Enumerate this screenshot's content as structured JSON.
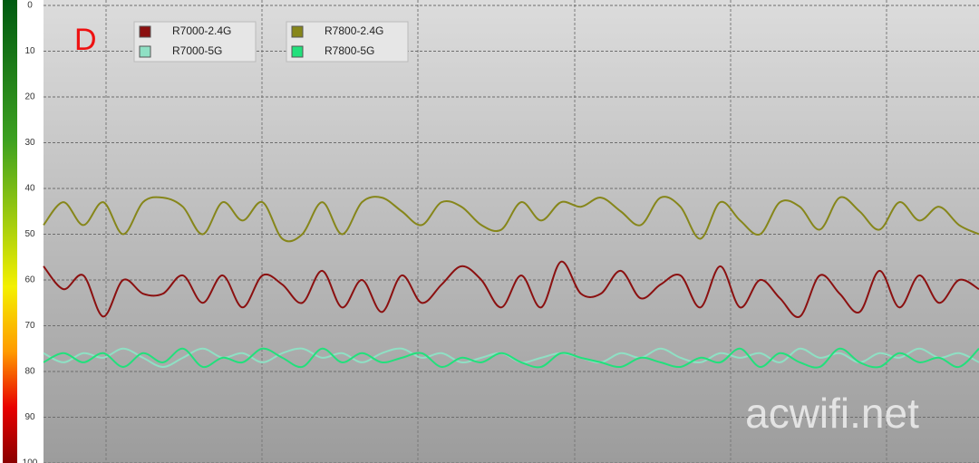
{
  "chart_data": {
    "type": "line",
    "annotation": "D",
    "watermark": "acwifi.net",
    "ylim": [
      100,
      0
    ],
    "yticks": [
      0,
      10,
      20,
      30,
      40,
      50,
      60,
      70,
      80,
      90,
      100
    ],
    "grid": true,
    "series": [
      {
        "name": "R7000-2.4G",
        "color": "#8b1010",
        "values": [
          57,
          62,
          59,
          68,
          60,
          63,
          63,
          59,
          65,
          59,
          66,
          59,
          61,
          65,
          58,
          66,
          60,
          67,
          59,
          65,
          61,
          57,
          60,
          66,
          59,
          66,
          56,
          63,
          63,
          58,
          64,
          61,
          59,
          66,
          57,
          66,
          60,
          64,
          68,
          59,
          63,
          67,
          58,
          66,
          59,
          65,
          60,
          62
        ]
      },
      {
        "name": "R7800-2.4G",
        "color": "#86861a",
        "values": [
          48,
          43,
          48,
          43,
          50,
          43,
          42,
          44,
          50,
          43,
          47,
          43,
          51,
          50,
          43,
          50,
          43,
          42,
          45,
          48,
          43,
          44,
          48,
          49,
          43,
          47,
          43,
          44,
          42,
          45,
          48,
          42,
          44,
          51,
          43,
          47,
          50,
          43,
          44,
          49,
          42,
          45,
          49,
          43,
          47,
          44,
          48,
          50
        ]
      },
      {
        "name": "R7000-5G",
        "color": "#8fe0c4",
        "values": [
          76,
          78,
          76,
          77,
          75,
          77,
          79,
          77,
          75,
          77,
          76,
          78,
          76,
          75,
          77,
          76,
          78,
          76,
          75,
          77,
          76,
          78,
          77,
          76,
          78,
          77,
          76,
          77,
          78,
          76,
          77,
          75,
          77,
          78,
          76,
          77,
          76,
          78,
          75,
          77,
          76,
          78,
          76,
          77,
          75,
          77,
          76,
          78
        ]
      },
      {
        "name": "R7800-5G",
        "color": "#22e07c",
        "values": [
          78,
          76,
          78,
          76,
          79,
          76,
          78,
          75,
          79,
          77,
          78,
          75,
          77,
          79,
          75,
          78,
          76,
          78,
          77,
          76,
          79,
          77,
          78,
          76,
          78,
          79,
          76,
          77,
          78,
          79,
          77,
          78,
          79,
          77,
          78,
          75,
          79,
          76,
          78,
          79,
          75,
          78,
          79,
          76,
          78,
          77,
          79,
          75
        ]
      }
    ]
  }
}
